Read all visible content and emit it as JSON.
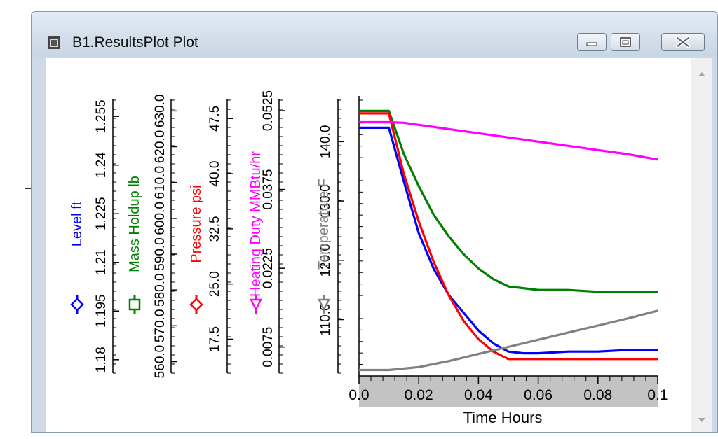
{
  "window": {
    "title": "B1.ResultsPlot Plot",
    "icon": "plot-window-icon",
    "buttons": [
      "minimize-icon",
      "restore-icon",
      "close-icon"
    ]
  },
  "chart_data": {
    "type": "line",
    "xlabel": "Time Hours",
    "xlim": [
      0.0,
      0.1
    ],
    "xticks": [
      "0.0",
      "0.02",
      "0.04",
      "0.06",
      "0.08",
      "0.1"
    ],
    "axes": [
      {
        "label": "Level ft",
        "color": "#0000ff",
        "marker": "diamond",
        "ticks": [
          "1.18",
          "1.195",
          "1.21",
          "1.225",
          "1.24",
          "1.255"
        ]
      },
      {
        "label": "Mass Holdup lb",
        "color": "#008000",
        "marker": "square",
        "ticks": [
          "560.0",
          "570.0",
          "580.0",
          "590.0",
          "600.0",
          "610.0",
          "620.0",
          "630.0"
        ]
      },
      {
        "label": "Pressure psi",
        "color": "#ff0000",
        "marker": "diamond",
        "ticks": [
          "17.5",
          "25.0",
          "32.5",
          "40.0",
          "47.5"
        ]
      },
      {
        "label": "Heating Duty MMBtu/hr",
        "color": "#ff00ff",
        "marker": "triangle",
        "ticks": [
          "0.0075",
          "0.0225",
          "0.0375",
          "0.0525"
        ]
      },
      {
        "label": "Temperature F",
        "color": "#808080",
        "marker": "triangle",
        "ticks": [
          "110.0",
          "120.0",
          "130.0",
          "140.0"
        ]
      }
    ],
    "series": [
      {
        "name": "Level ft",
        "color": "#0000ff",
        "x": [
          0,
          0.01,
          0.015,
          0.02,
          0.025,
          0.03,
          0.035,
          0.04,
          0.045,
          0.05,
          0.055,
          0.06,
          0.07,
          0.08,
          0.09,
          0.1
        ],
        "y": [
          1.2515,
          1.2515,
          1.235,
          1.219,
          1.208,
          1.2,
          1.1945,
          1.189,
          1.185,
          1.1825,
          1.182,
          1.182,
          1.1825,
          1.1825,
          1.183,
          1.183
        ]
      },
      {
        "name": "Mass Holdup lb",
        "color": "#008000",
        "x": [
          0,
          0.01,
          0.015,
          0.02,
          0.025,
          0.03,
          0.035,
          0.04,
          0.045,
          0.05,
          0.055,
          0.06,
          0.07,
          0.08,
          0.09,
          0.1
        ],
        "y": [
          630,
          630,
          618,
          609,
          601,
          595,
          590,
          586,
          583,
          581,
          580.5,
          580,
          580,
          579.5,
          579.5,
          579.5
        ]
      },
      {
        "name": "Pressure psi",
        "color": "#ff0000",
        "x": [
          0,
          0.01,
          0.015,
          0.02,
          0.025,
          0.03,
          0.035,
          0.04,
          0.045,
          0.05,
          0.055,
          0.06,
          0.07,
          0.08,
          0.09,
          0.1
        ],
        "y": [
          48.2,
          48.2,
          40.0,
          33.5,
          28.0,
          23.5,
          20.0,
          17.5,
          15.8,
          14.8,
          14.8,
          14.8,
          14.8,
          14.8,
          14.8,
          14.8
        ]
      },
      {
        "name": "Heating Duty MMBtu/hr",
        "color": "#ff00ff",
        "x": [
          0,
          0.01,
          0.015,
          0.02,
          0.03,
          0.04,
          0.05,
          0.06,
          0.07,
          0.08,
          0.09,
          0.1
        ],
        "y": [
          0.0503,
          0.0503,
          0.0502,
          0.0498,
          0.049,
          0.0482,
          0.0474,
          0.0466,
          0.0458,
          0.045,
          0.0442,
          0.0432
        ]
      },
      {
        "name": "Temperature F",
        "color": "#808080",
        "x": [
          0,
          0.01,
          0.02,
          0.03,
          0.04,
          0.05,
          0.06,
          0.07,
          0.08,
          0.09,
          0.1
        ],
        "y": [
          101.5,
          101.5,
          102.0,
          103.0,
          104.2,
          105.4,
          106.6,
          107.8,
          109.0,
          110.2,
          111.5
        ]
      }
    ]
  }
}
